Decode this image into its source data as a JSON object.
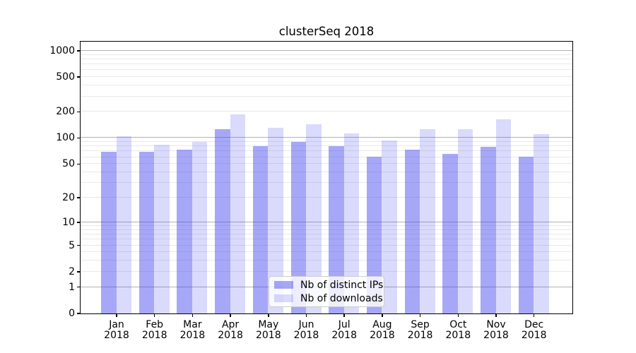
{
  "title": "clusterSeq 2018",
  "chart_data": {
    "type": "bar",
    "title": "clusterSeq 2018",
    "categories": [
      "Jan",
      "Feb",
      "Mar",
      "Apr",
      "May",
      "Jun",
      "Jul",
      "Aug",
      "Sep",
      "Oct",
      "Nov",
      "Dec"
    ],
    "category_year": "2018",
    "series": [
      {
        "name": "Nb of distinct IPs",
        "color": "rgba(60,60,240,0.45)",
        "approx_hex": "#a7a7f4",
        "values": [
          68,
          69,
          72,
          126,
          80,
          89,
          80,
          60,
          72,
          65,
          79,
          60
        ]
      },
      {
        "name": "Nb of downloads",
        "color": "rgba(60,60,240,0.19)",
        "approx_hex": "#dcdcfa",
        "values": [
          104,
          83,
          89,
          187,
          131,
          142,
          112,
          92,
          124,
          126,
          164,
          109
        ]
      }
    ],
    "xlabel": "",
    "ylabel": "",
    "yscale": "log10(value+1)",
    "yticks": [
      0,
      1,
      2,
      5,
      10,
      20,
      50,
      100,
      200,
      500,
      1000
    ],
    "yticks_major_grid": [
      1,
      10,
      100,
      1000
    ],
    "ylim": [
      0,
      1265
    ],
    "grid": true,
    "legend_position": "lower center"
  },
  "colors": {
    "grid_major": "#b2b2b2",
    "grid_minor": "#e9e9e9",
    "spine": "#000000",
    "legend_border": "#cccccc",
    "text": "#000000"
  }
}
